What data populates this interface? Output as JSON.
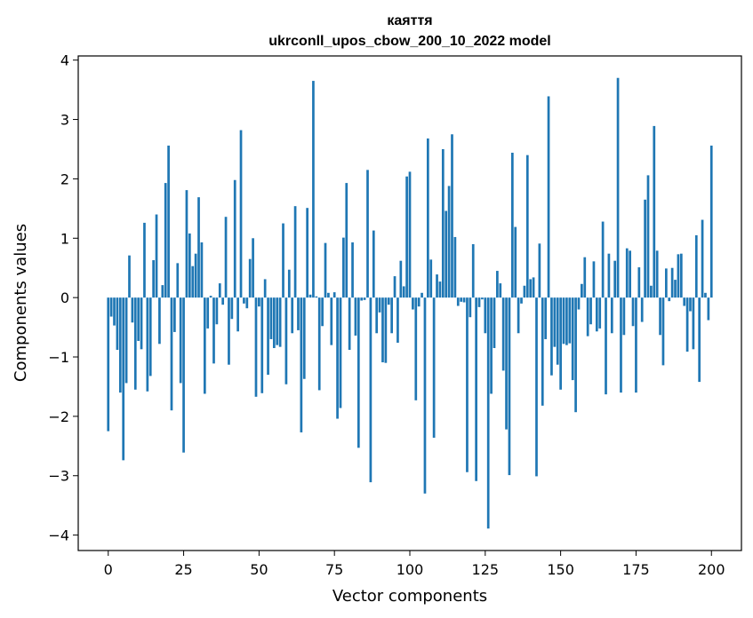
{
  "chart_data": {
    "type": "bar",
    "title_line1": "каяття",
    "title_line2": "ukrconll_upos_cbow_200_10_2022 model",
    "xlabel": "Vector components",
    "ylabel": "Components values",
    "xlim": [
      -9.95,
      209.95
    ],
    "ylim": [
      -4.26,
      4.07
    ],
    "xticks": [
      0,
      25,
      50,
      75,
      100,
      125,
      150,
      175,
      200
    ],
    "yticks": [
      -4,
      -3,
      -2,
      -1,
      0,
      1,
      2,
      3,
      4
    ],
    "bar_color": "#1f77b4",
    "grid": false,
    "values": [
      -2.25,
      -0.32,
      -0.47,
      -0.88,
      -1.6,
      -2.74,
      -1.44,
      0.71,
      -0.42,
      -1.55,
      -0.73,
      -0.87,
      1.26,
      -1.58,
      -1.32,
      0.63,
      1.4,
      -0.78,
      0.21,
      1.93,
      2.56,
      -1.9,
      -0.58,
      0.58,
      -1.44,
      -2.61,
      1.81,
      1.08,
      0.53,
      0.74,
      1.69,
      0.93,
      -1.62,
      -0.52,
      0.03,
      -1.11,
      -0.45,
      0.24,
      -0.12,
      1.36,
      -1.13,
      -0.36,
      1.98,
      -0.57,
      2.82,
      -0.1,
      -0.18,
      0.65,
      1.0,
      -1.67,
      -0.15,
      -1.61,
      0.31,
      -1.3,
      -0.7,
      -0.85,
      -0.8,
      -0.83,
      1.25,
      -1.46,
      0.47,
      -0.6,
      1.54,
      -0.55,
      -2.27,
      -1.37,
      1.51,
      0.05,
      3.65,
      0.02,
      -1.56,
      -0.48,
      0.92,
      0.08,
      -0.8,
      0.09,
      -2.04,
      -1.86,
      1.01,
      1.93,
      -0.88,
      0.93,
      -0.64,
      -2.53,
      -0.05,
      -0.04,
      2.15,
      -3.11,
      1.13,
      -0.6,
      -0.25,
      -1.09,
      -1.1,
      -0.12,
      -0.6,
      0.36,
      -0.76,
      0.62,
      0.19,
      2.04,
      2.12,
      -0.2,
      -1.73,
      -0.15,
      0.08,
      -3.3,
      2.68,
      0.64,
      -2.36,
      0.39,
      0.27,
      2.5,
      1.46,
      1.88,
      2.75,
      1.02,
      -0.14,
      -0.07,
      -0.08,
      -2.94,
      -0.33,
      0.9,
      -3.09,
      -0.16,
      -0.03,
      -0.6,
      -3.89,
      -1.62,
      -0.85,
      0.45,
      0.24,
      -1.23,
      -2.22,
      -2.99,
      2.44,
      1.19,
      -0.6,
      -0.1,
      0.2,
      2.4,
      0.31,
      0.34,
      -3.01,
      0.91,
      -1.82,
      -0.7,
      3.39,
      -1.31,
      -0.83,
      -1.13,
      -1.55,
      -0.78,
      -0.8,
      -0.77,
      -1.39,
      -1.93,
      -0.2,
      0.23,
      0.68,
      -0.65,
      -0.45,
      0.61,
      -0.57,
      -0.52,
      1.28,
      -1.63,
      0.74,
      -0.6,
      0.62,
      3.7,
      -1.6,
      -0.63,
      0.83,
      0.79,
      -0.48,
      -1.6,
      0.51,
      -0.41,
      1.65,
      2.06,
      0.2,
      2.89,
      0.79,
      -0.63,
      -1.14,
      0.49,
      -0.06,
      0.5,
      0.3,
      0.73,
      0.74,
      -0.14,
      -0.91,
      -0.23,
      -0.87,
      1.05,
      -1.42,
      1.31,
      0.08,
      -0.38,
      2.56
    ]
  }
}
